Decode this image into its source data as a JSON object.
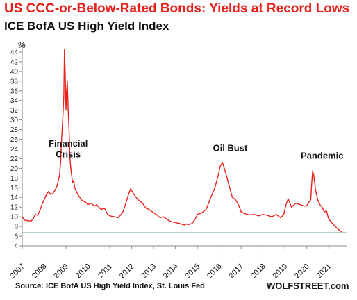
{
  "chart_data": {
    "type": "line",
    "title": "US CCC-or-Below-Rated  Bonds: Yields at Record Lows",
    "subtitle": "ICE BofA US High Yield Index",
    "ylabel": "%",
    "xlabel": "",
    "source": "Source: ICE BofA US High Yield Index, St. Louis Fed",
    "brand": "WOLFSTREET.com",
    "ylim": [
      4,
      45
    ],
    "xlim": [
      2007.0,
      2021.85
    ],
    "yticks": [
      4,
      6,
      8,
      10,
      12,
      14,
      16,
      18,
      20,
      22,
      24,
      26,
      28,
      30,
      32,
      34,
      36,
      38,
      40,
      42,
      44
    ],
    "xticks": [
      "2007",
      "2008",
      "2009",
      "2010",
      "2011",
      "2012",
      "2013",
      "2014",
      "2015",
      "2016",
      "2017",
      "2018",
      "2019",
      "2020",
      "2021"
    ],
    "grid": false,
    "line_color": "#e8201a",
    "reference_line": {
      "y": 6.7,
      "color": "#2e9e4f"
    },
    "annotations": [
      {
        "text": "Financial",
        "x": 2009.1,
        "y": 24.5
      },
      {
        "text": "Crisis",
        "x": 2009.1,
        "y": 22.3
      },
      {
        "text": "Oil Bust",
        "x": 2016.5,
        "y": 23.6
      },
      {
        "text": "Pandemic",
        "x": 2020.7,
        "y": 22.0
      }
    ],
    "series": [
      {
        "x": [
          2007.0,
          2007.1,
          2007.25,
          2007.4,
          2007.5,
          2007.6,
          2007.7,
          2007.8,
          2007.9,
          2008.0,
          2008.1,
          2008.2,
          2008.3,
          2008.4,
          2008.5,
          2008.6,
          2008.7,
          2008.75,
          2008.8,
          2008.85,
          2008.9,
          2008.93,
          2008.96,
          2009.0,
          2009.03,
          2009.06,
          2009.1,
          2009.14,
          2009.18,
          2009.22,
          2009.26,
          2009.3,
          2009.35,
          2009.4,
          2009.5,
          2009.6,
          2009.7,
          2009.8,
          2009.9,
          2010.0,
          2010.15,
          2010.3,
          2010.4,
          2010.5,
          2010.6,
          2010.75,
          2010.9,
          2011.0,
          2011.2,
          2011.4,
          2011.6,
          2011.75,
          2011.85,
          2011.95,
          2012.05,
          2012.2,
          2012.35,
          2012.5,
          2012.65,
          2012.8,
          2012.95,
          2013.1,
          2013.3,
          2013.45,
          2013.6,
          2013.8,
          2014.0,
          2014.2,
          2014.4,
          2014.5,
          2014.6,
          2014.75,
          2014.9,
          2015.0,
          2015.2,
          2015.4,
          2015.6,
          2015.8,
          2015.95,
          2016.05,
          2016.15,
          2016.3,
          2016.45,
          2016.6,
          2016.75,
          2016.9,
          2017.0,
          2017.2,
          2017.4,
          2017.6,
          2017.8,
          2018.0,
          2018.2,
          2018.4,
          2018.6,
          2018.8,
          2018.95,
          2019.05,
          2019.15,
          2019.3,
          2019.5,
          2019.7,
          2019.9,
          2020.0,
          2020.1,
          2020.18,
          2020.22,
          2020.27,
          2020.32,
          2020.4,
          2020.5,
          2020.6,
          2020.7,
          2020.8,
          2020.9,
          2021.0,
          2021.1,
          2021.2,
          2021.3,
          2021.4,
          2021.5,
          2021.6
        ],
        "y": [
          10.0,
          9.3,
          9.2,
          9.1,
          9.6,
          10.5,
          10.3,
          11.2,
          12.5,
          13.5,
          14.5,
          15.2,
          14.6,
          14.8,
          15.5,
          16.5,
          18.5,
          21.0,
          26.0,
          30.0,
          35.0,
          44.5,
          40.0,
          32.0,
          36.0,
          38.0,
          32.0,
          28.0,
          22.0,
          20.0,
          18.5,
          17.0,
          17.5,
          16.0,
          15.0,
          14.2,
          13.5,
          13.2,
          13.0,
          12.5,
          12.8,
          12.2,
          12.5,
          12.0,
          11.5,
          11.8,
          10.5,
          10.2,
          10.0,
          9.8,
          11.0,
          13.0,
          14.5,
          15.8,
          15.0,
          14.0,
          13.3,
          12.8,
          11.8,
          11.5,
          11.0,
          10.6,
          9.8,
          10.0,
          9.5,
          9.0,
          8.8,
          8.6,
          8.3,
          8.5,
          8.4,
          8.6,
          9.5,
          10.5,
          10.8,
          11.5,
          13.8,
          16.0,
          18.5,
          20.5,
          21.2,
          19.0,
          16.5,
          14.0,
          13.5,
          12.3,
          11.0,
          10.6,
          10.4,
          10.5,
          10.2,
          10.5,
          10.3,
          10.0,
          10.5,
          9.8,
          10.5,
          12.5,
          13.7,
          12.0,
          12.8,
          12.5,
          12.2,
          12.3,
          13.0,
          13.5,
          16.5,
          19.5,
          18.5,
          15.5,
          13.5,
          12.5,
          12.0,
          11.0,
          11.2,
          9.5,
          9.0,
          8.5,
          8.0,
          7.6,
          7.2,
          6.9
        ]
      }
    ]
  }
}
